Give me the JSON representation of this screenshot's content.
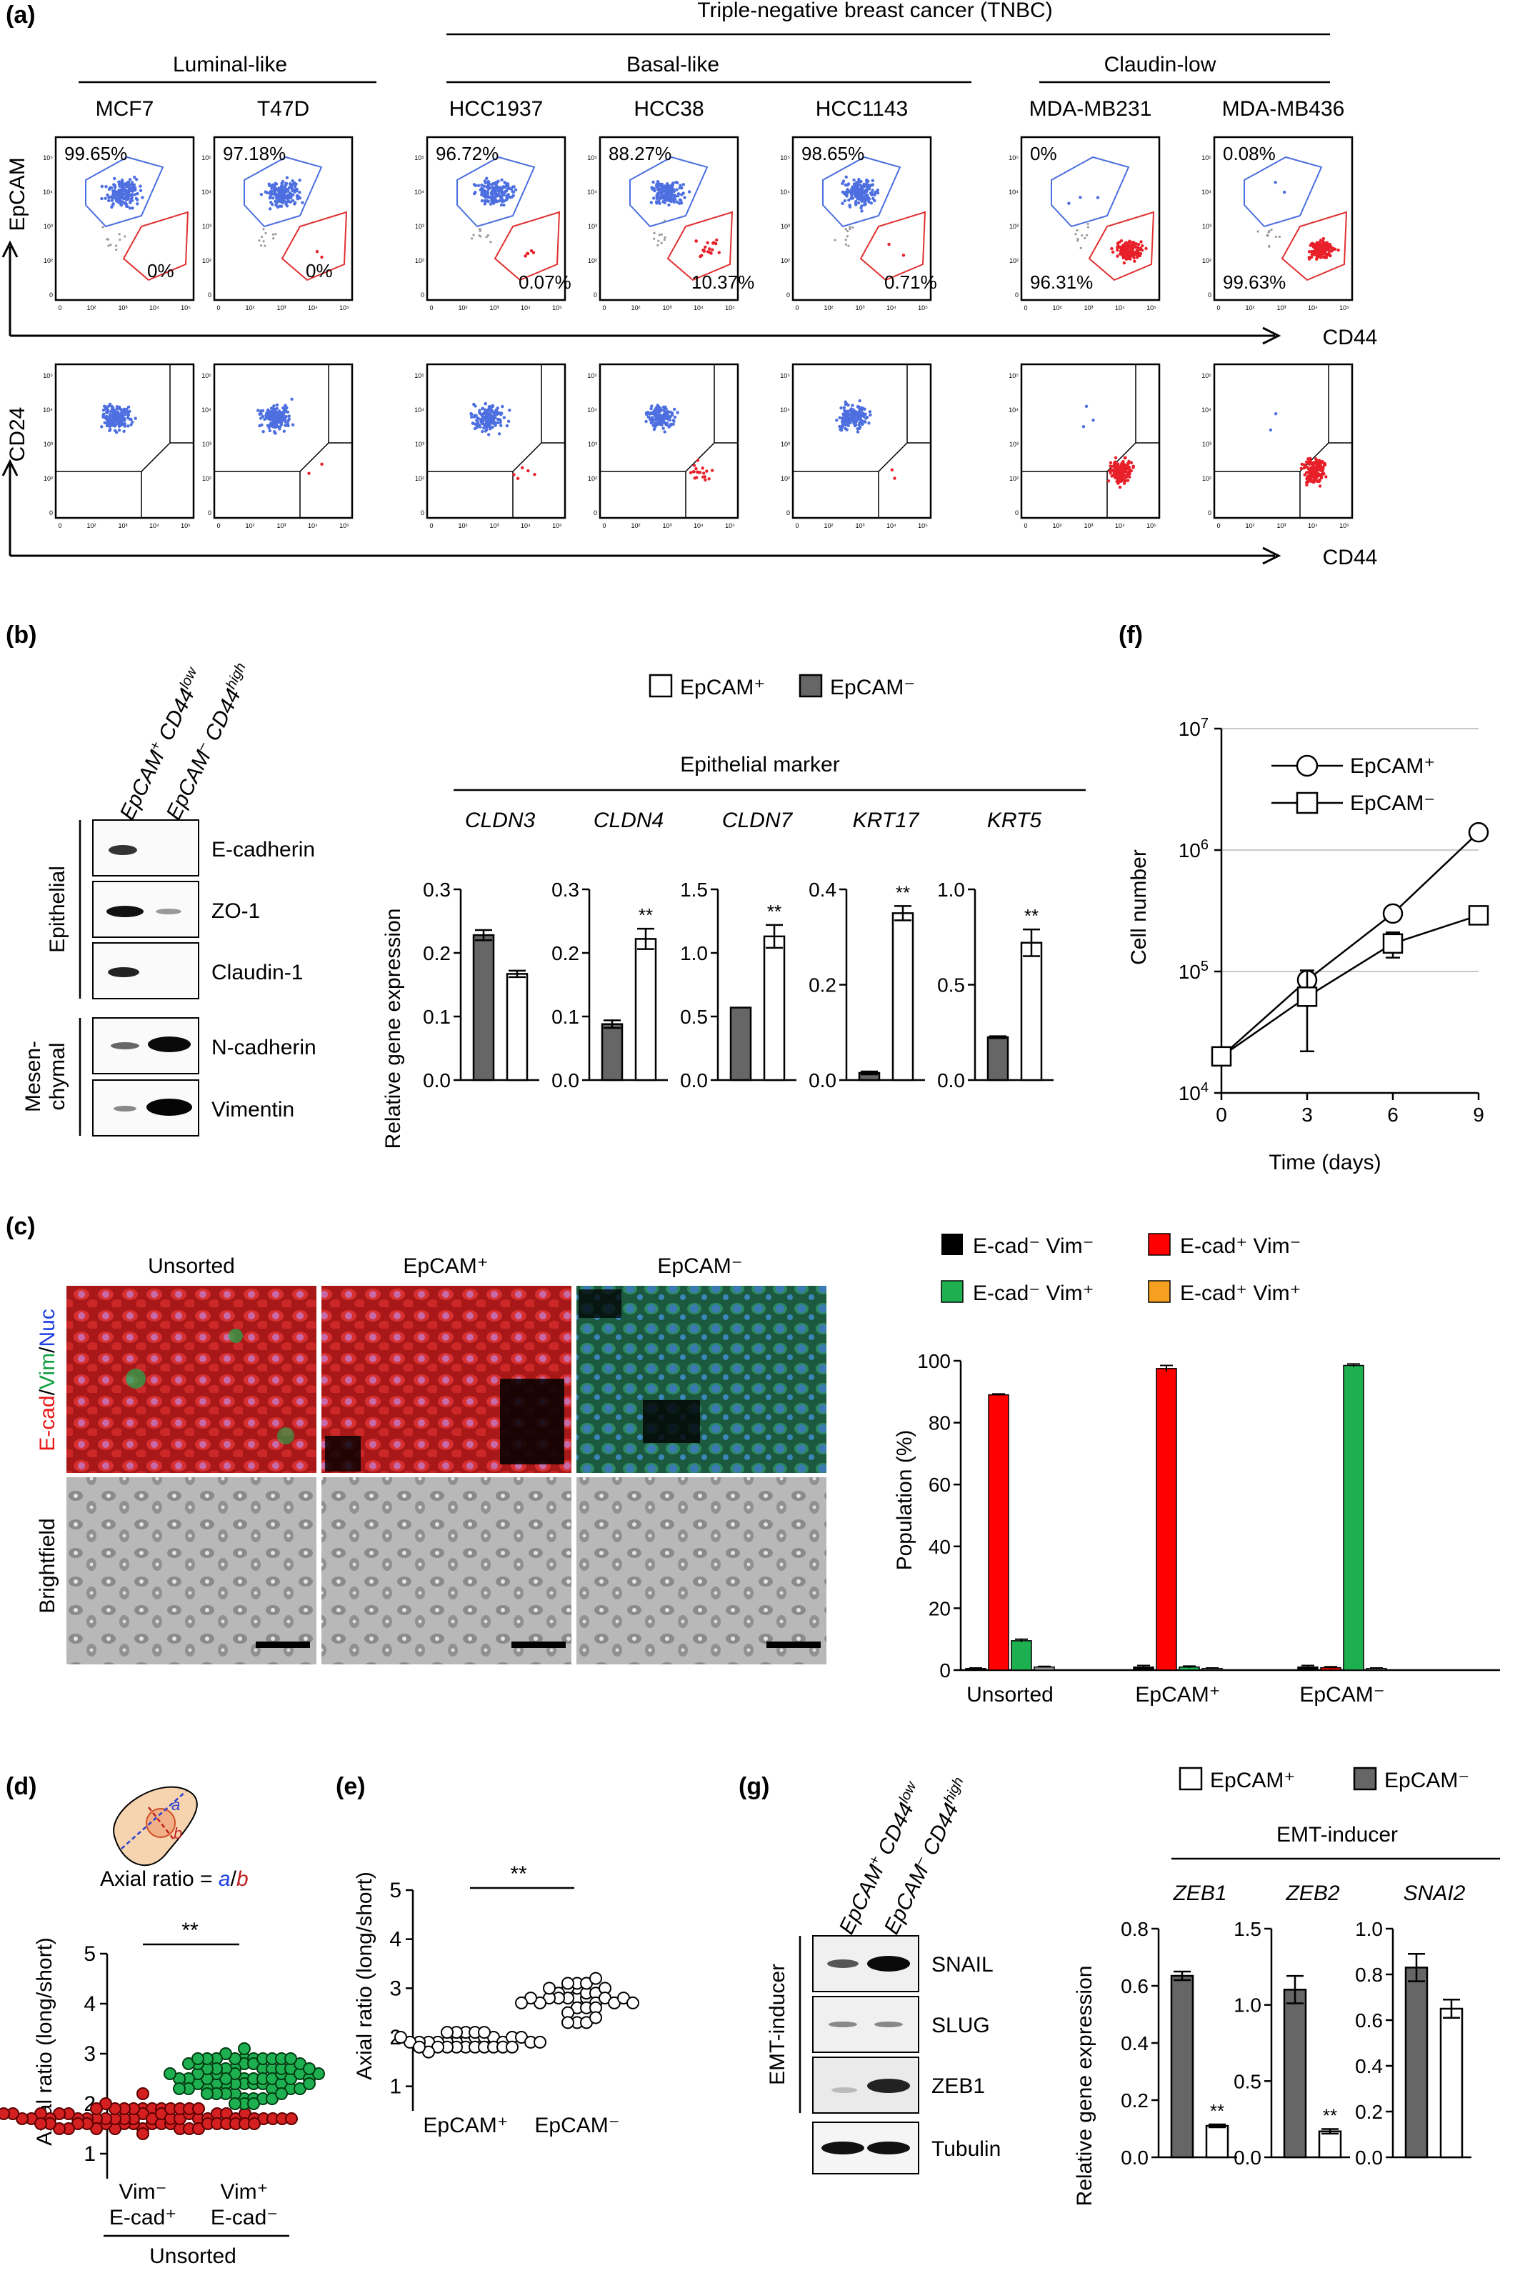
{
  "panels": {
    "a": "(a)",
    "b": "(b)",
    "c": "(c)",
    "d": "(d)",
    "e": "(e)",
    "f": "(f)",
    "g": "(g)"
  },
  "panel_a": {
    "tnbc_header": "Triple-negative breast cancer (TNBC)",
    "groups": [
      "Luminal-like",
      "Basal-like",
      "Claudin-low"
    ],
    "cell_lines": [
      "MCF7",
      "T47D",
      "HCC1937",
      "HCC38",
      "HCC1143",
      "MDA-MB231",
      "MDA-MB436"
    ],
    "epcam_pos_pct": [
      "99.65%",
      "97.18%",
      "96.72%",
      "88.27%",
      "98.65%",
      "0%",
      "0.08%"
    ],
    "epcam_neg_pct": [
      "0%",
      "0%",
      "0.07%",
      "10.37%",
      "0.71%",
      "96.31%",
      "99.63%"
    ],
    "top_ylabel": "EpCAM",
    "bottom_ylabel": "CD24",
    "xlabel": "CD44",
    "ticks": [
      "0",
      "10²",
      "10³",
      "10⁴",
      "10⁵"
    ],
    "blue_fraction": [
      1.0,
      0.99,
      0.97,
      0.89,
      0.99,
      0.02,
      0.01
    ],
    "colors": {
      "blue": "#4d6fe0",
      "red": "#e8202a",
      "grey": "#9a9a9a"
    }
  },
  "panel_b_blot": {
    "lanes": [
      "EpCAM+ CD44low",
      "EpCAM– CD44high"
    ],
    "lane1_main": "EpCAM",
    "lane1_sup": "+",
    "lane1_rest": " CD44",
    "lane1_exp": "low",
    "lane2_main": "EpCAM",
    "lane2_sup": "–",
    "lane2_rest": " CD44",
    "lane2_exp": "high",
    "group1": "Epithelial",
    "group2_line1": "Mesen-",
    "group2_line2": "chymal",
    "rows": [
      "E-cadherin",
      "ZO-1",
      "Claudin-1",
      "N-cadherin",
      "Vimentin"
    ]
  },
  "panel_b_chart": {
    "legend_pos": "EpCAM⁺",
    "legend_neg": "EpCAM⁻",
    "group_header": "Epithelial marker",
    "ylabel": "Relative  gene expression",
    "sig": "**",
    "genes": [
      "CLDN3",
      "CLDN4",
      "CLDN7",
      "KRT17",
      "KRT5"
    ]
  },
  "panel_c": {
    "titles": [
      "Unsorted",
      "EpCAM⁺",
      "EpCAM⁻"
    ],
    "row1_label_parts": [
      "E-cad",
      "/",
      "Vim",
      "/",
      "Nuc"
    ],
    "row2_label": "Brightfield",
    "legend": [
      "E-cad⁻ Vim⁻",
      "E-cad⁺ Vim⁻",
      "E-cad⁻ Vim⁺",
      "E-cad⁺ Vim⁺"
    ],
    "legend_colors": [
      "#000000",
      "#ff0000",
      "#1eb050",
      "#f5a020"
    ],
    "ylabel": "Population (%)"
  },
  "panel_d": {
    "formula_prefix": "Axial ratio = ",
    "a": "a",
    "slash": "/",
    "b": "b",
    "ylabel": "Axial ratio (long/short)",
    "sig": "**",
    "x1_line1": "Vim⁻",
    "x1_line2": "E-cad⁺",
    "x2_line1": "Vim⁺",
    "x2_line2": "E-cad⁻",
    "group_label": "Unsorted",
    "yticks": [
      "1",
      "2",
      "3",
      "4",
      "5"
    ]
  },
  "panel_e": {
    "ylabel": "Axial ratio (long/short)",
    "sig": "**",
    "x_labels": [
      "EpCAM⁺",
      "EpCAM⁻"
    ],
    "yticks": [
      "1",
      "2",
      "3",
      "4",
      "5"
    ]
  },
  "panel_f": {
    "legend": [
      "EpCAM⁺",
      "EpCAM⁻"
    ],
    "ylabel": "Cell number",
    "xlabel": "Time (days)",
    "xticks": [
      "0",
      "3",
      "6",
      "9"
    ],
    "ytick_base": "10",
    "ytick_exps": [
      "4",
      "5",
      "6",
      "7"
    ]
  },
  "panel_g_blot": {
    "lane1_main": "EpCAM",
    "lane1_sup": "+",
    "lane1_rest": " CD44",
    "lane1_exp": "low",
    "lane2_main": "EpCAM",
    "lane2_sup": "–",
    "lane2_rest": " CD44",
    "lane2_exp": "high",
    "group": "EMT-inducer",
    "rows": [
      "SNAIL",
      "SLUG",
      "ZEB1",
      "Tubulin"
    ]
  },
  "panel_g_chart": {
    "legend_pos": "EpCAM⁺",
    "legend_neg": "EpCAM⁻",
    "group_header": "EMT-inducer",
    "ylabel": "Relative  gene expression",
    "sig": "**",
    "genes": [
      "ZEB1",
      "ZEB2",
      "SNAI2"
    ]
  },
  "chart_data": [
    {
      "type": "bar",
      "title": "Epithelial marker",
      "ylabel": "Relative  gene expression",
      "categories": [
        "CLDN3",
        "CLDN4",
        "CLDN7",
        "KRT17",
        "KRT5"
      ],
      "series": [
        {
          "name": "EpCAM⁻",
          "values": [
            0.228,
            0.088,
            0.57,
            0.015,
            0.225
          ],
          "errors": [
            0.008,
            0.006,
            0.0,
            0.003,
            0.005
          ]
        },
        {
          "name": "EpCAM⁺",
          "values": [
            0.167,
            0.222,
            1.13,
            0.35,
            0.72
          ],
          "errors": [
            0.005,
            0.016,
            0.09,
            0.015,
            0.07
          ]
        }
      ],
      "ylims": [
        [
          0,
          0.3
        ],
        [
          0,
          0.3
        ],
        [
          0,
          1.5
        ],
        [
          0,
          0.4
        ],
        [
          0,
          1.0
        ]
      ],
      "yticks": [
        [
          "0.0",
          "0.1",
          "0.2",
          "0.3"
        ],
        [
          "0.0",
          "0.1",
          "0.2",
          "0.3"
        ],
        [
          "0.0",
          "0.5",
          "1.0",
          "1.5"
        ],
        [
          "0.0",
          "0.2",
          "0.4"
        ],
        [
          "0.0",
          "0.5",
          "1.0"
        ]
      ],
      "significance": [
        "",
        "**",
        "**",
        "**",
        "**"
      ]
    },
    {
      "type": "bar",
      "ylabel": "Population (%)",
      "categories": [
        "Unsorted",
        "EpCAM⁺",
        "EpCAM⁻"
      ],
      "series": [
        {
          "name": "E-cad⁻ Vim⁻",
          "values": [
            0.5,
            1.0,
            1.0
          ],
          "errors": [
            0.2,
            0.5,
            0.5
          ]
        },
        {
          "name": "E-cad⁺ Vim⁻",
          "values": [
            89,
            97.5,
            0.8
          ],
          "errors": [
            0.3,
            1.0,
            0.3
          ]
        },
        {
          "name": "E-cad⁻ Vim⁺",
          "values": [
            9.5,
            1.0,
            98.5
          ],
          "errors": [
            0.5,
            0.3,
            0.5
          ]
        },
        {
          "name": "E-cad⁺ Vim⁺",
          "values": [
            1.0,
            0.5,
            0.5
          ],
          "errors": [
            0.2,
            0.2,
            0.2
          ]
        }
      ],
      "ylim": [
        0,
        100
      ],
      "yticks": [
        "0",
        "20",
        "40",
        "60",
        "80",
        "100"
      ]
    },
    {
      "type": "scatter",
      "ylabel": "Axial ratio (long/short)",
      "groups": [
        "Vim⁻ E-cad⁺",
        "Vim⁺ E-cad⁻"
      ],
      "ylim": [
        0.5,
        5
      ],
      "group_ranges": [
        [
          1.1,
          3.6
        ],
        [
          1.2,
          4.0
        ]
      ],
      "significance": "**"
    },
    {
      "type": "scatter",
      "ylabel": "Axial ratio (long/short)",
      "groups": [
        "EpCAM⁺",
        "EpCAM⁻"
      ],
      "ylim": [
        0.5,
        5
      ],
      "group_ranges": [
        [
          1.2,
          4.0
        ],
        [
          1.2,
          4.0
        ]
      ],
      "significance": "**"
    },
    {
      "type": "line",
      "xlabel": "Time (days)",
      "ylabel": "Cell number",
      "x": [
        0,
        3,
        6,
        9
      ],
      "series": [
        {
          "name": "EpCAM⁺",
          "values": [
            20000,
            85000,
            300000,
            1400000
          ]
        },
        {
          "name": "EpCAM⁻",
          "values": [
            20000,
            62000,
            170000,
            290000
          ],
          "errors": [
            0,
            40000,
            40000,
            0
          ]
        }
      ],
      "yscale": "log",
      "ylim": [
        10000,
        10000000
      ]
    },
    {
      "type": "bar",
      "title": "EMT-inducer",
      "ylabel": "Relative  gene expression",
      "categories": [
        "ZEB1",
        "ZEB2",
        "SNAI2"
      ],
      "series": [
        {
          "name": "EpCAM⁻",
          "values": [
            0.635,
            1.1,
            0.83
          ],
          "errors": [
            0.015,
            0.09,
            0.06
          ]
        },
        {
          "name": "EpCAM⁺",
          "values": [
            0.11,
            0.17,
            0.65
          ],
          "errors": [
            0.005,
            0.015,
            0.04
          ]
        }
      ],
      "ylims": [
        [
          0,
          0.8
        ],
        [
          0,
          1.5
        ],
        [
          0,
          1.0
        ]
      ],
      "yticks": [
        [
          "0.0",
          "0.2",
          "0.4",
          "0.6",
          "0.8"
        ],
        [
          "0.0",
          "0.5",
          "1.0",
          "1.5"
        ],
        [
          "0.0",
          "0.2",
          "0.4",
          "0.6",
          "0.8",
          "1.0"
        ]
      ],
      "significance": [
        "**",
        "**",
        ""
      ]
    }
  ]
}
